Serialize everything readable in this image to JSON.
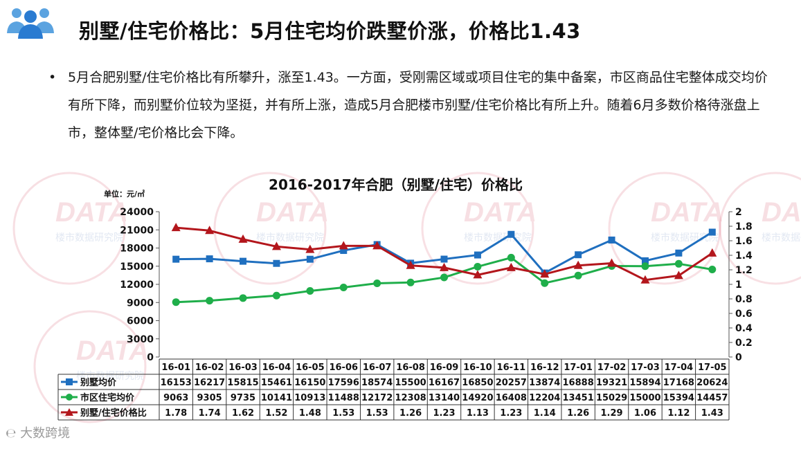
{
  "header": {
    "title": "别墅/住宅价格比：5月住宅均价跌墅价涨，价格比1.43",
    "logo_icon": "people-group-icon"
  },
  "bullet": {
    "marker": "•",
    "text": "5月合肥别墅/住宅价格比有所攀升，涨至1.43。一方面，受刚需区域或项目住宅的集中备案，市区商品住宅整体成交均价有所下降，而别墅价位较为坚挺，并有所上涨，造成5月合肥楼市别墅/住宅价格比有所上升。随着6月多数价格待涨盘上市，整体墅/宅价格比会下降。"
  },
  "watermark": {
    "brand": "DATA",
    "subtitle": "楼市数据研究院"
  },
  "footer": {
    "logo_text": "大数跨境"
  },
  "chart_data": {
    "type": "line",
    "title": "2016-2017年合肥（别墅/住宅）价格比",
    "unit_label": "单位：元/㎡",
    "categories": [
      "16-01",
      "16-02",
      "16-03",
      "16-04",
      "16-05",
      "16-06",
      "16-07",
      "16-08",
      "16-09",
      "16-10",
      "16-11",
      "16-12",
      "17-01",
      "17-02",
      "17-03",
      "17-04",
      "17-05"
    ],
    "y_left": {
      "min": 0,
      "max": 24000,
      "step": 3000
    },
    "y_right": {
      "min": 0,
      "max": 2,
      "step": 0.2
    },
    "grid": false,
    "legend": "table-rows",
    "series": [
      {
        "name": "别墅均价",
        "axis": "left",
        "color": "#1f6fbf",
        "marker": "square",
        "values": [
          16153,
          16217,
          15815,
          15461,
          16150,
          17596,
          18574,
          15500,
          16167,
          16850,
          20257,
          13874,
          16888,
          19321,
          15894,
          17168,
          20624
        ]
      },
      {
        "name": "市区住宅均价",
        "axis": "left",
        "color": "#1fae4a",
        "marker": "circle",
        "values": [
          9063,
          9305,
          9735,
          10141,
          10913,
          11488,
          12172,
          12308,
          13140,
          14920,
          16408,
          12204,
          13451,
          15029,
          15000,
          15394,
          14457
        ]
      },
      {
        "name": "别墅/住宅价格比",
        "axis": "right",
        "color": "#b3161c",
        "marker": "triangle",
        "values": [
          1.78,
          1.74,
          1.62,
          1.52,
          1.48,
          1.53,
          1.53,
          1.26,
          1.23,
          1.13,
          1.23,
          1.14,
          1.26,
          1.29,
          1.06,
          1.12,
          1.43
        ]
      }
    ]
  }
}
